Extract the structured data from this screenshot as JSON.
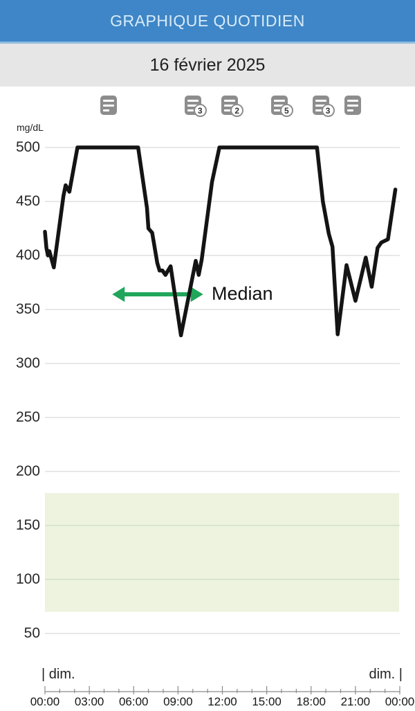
{
  "header": {
    "title": "GRAPHIQUE QUOTIDIEN",
    "date": "16 février 2025"
  },
  "events": [
    {
      "hour": 4.3,
      "count": ""
    },
    {
      "hour": 10.0,
      "count": "3"
    },
    {
      "hour": 12.5,
      "count": "2"
    },
    {
      "hour": 15.85,
      "count": "5"
    },
    {
      "hour": 18.65,
      "count": "3"
    },
    {
      "hour": 20.8,
      "count": ""
    }
  ],
  "chart_data": {
    "type": "line",
    "title": "Daily glucose graph",
    "ylabel": "mg/dL",
    "xlabel": "",
    "ylim": [
      50,
      500
    ],
    "yticks": [
      500,
      450,
      400,
      350,
      300,
      250,
      200,
      150,
      100,
      50
    ],
    "xticks": [
      {
        "hour": 0,
        "label": "00:00"
      },
      {
        "hour": 3,
        "label": "03:00"
      },
      {
        "hour": 6,
        "label": "06:00"
      },
      {
        "hour": 9,
        "label": "09:00"
      },
      {
        "hour": 12,
        "label": "12:00"
      },
      {
        "hour": 15,
        "label": "15:00"
      },
      {
        "hour": 18,
        "label": "18:00"
      },
      {
        "hour": 21,
        "label": "21:00"
      },
      {
        "hour": 24,
        "label": "00:00"
      }
    ],
    "day_label_left": "| dim.",
    "day_label_right": "dim. |",
    "target_range": {
      "low": 70,
      "high": 180
    },
    "median": {
      "label": "Median",
      "value": 364,
      "from_hour": 4.55,
      "to_hour": 10.7
    },
    "series": [
      {
        "name": "glucose_mg_dl",
        "points": [
          [
            0.0,
            422
          ],
          [
            0.1,
            407
          ],
          [
            0.2,
            400
          ],
          [
            0.3,
            404
          ],
          [
            0.6,
            389
          ],
          [
            1.25,
            455
          ],
          [
            1.4,
            465
          ],
          [
            1.65,
            459
          ],
          [
            2.2,
            500
          ],
          [
            6.3,
            500
          ],
          [
            6.9,
            444
          ],
          [
            7.0,
            425
          ],
          [
            7.25,
            421
          ],
          [
            7.6,
            393
          ],
          [
            7.75,
            386
          ],
          [
            7.95,
            386
          ],
          [
            8.15,
            382
          ],
          [
            8.5,
            390
          ],
          [
            9.2,
            326
          ],
          [
            10.2,
            395
          ],
          [
            10.4,
            382
          ],
          [
            10.6,
            396
          ],
          [
            11.3,
            468
          ],
          [
            11.8,
            500
          ],
          [
            18.4,
            500
          ],
          [
            18.8,
            450
          ],
          [
            19.2,
            420
          ],
          [
            19.45,
            408
          ],
          [
            19.8,
            327
          ],
          [
            20.4,
            391
          ],
          [
            21.0,
            358
          ],
          [
            21.7,
            398
          ],
          [
            22.1,
            371
          ],
          [
            22.5,
            407
          ],
          [
            22.75,
            412
          ],
          [
            23.2,
            415
          ],
          [
            23.7,
            461
          ]
        ]
      }
    ]
  },
  "colors": {
    "header_bg": "#3e86c7",
    "header_text": "#d9ebf9",
    "date_bg": "#e6e6e6",
    "glucose_line": "#141414",
    "grid": "#d9d9d9",
    "grid_in_band": "#ccdcc0",
    "target_band": "#edf3df",
    "median_green": "#1fa65a",
    "icon_gray": "#8d8d8d",
    "axis": "#8a8a8a"
  }
}
